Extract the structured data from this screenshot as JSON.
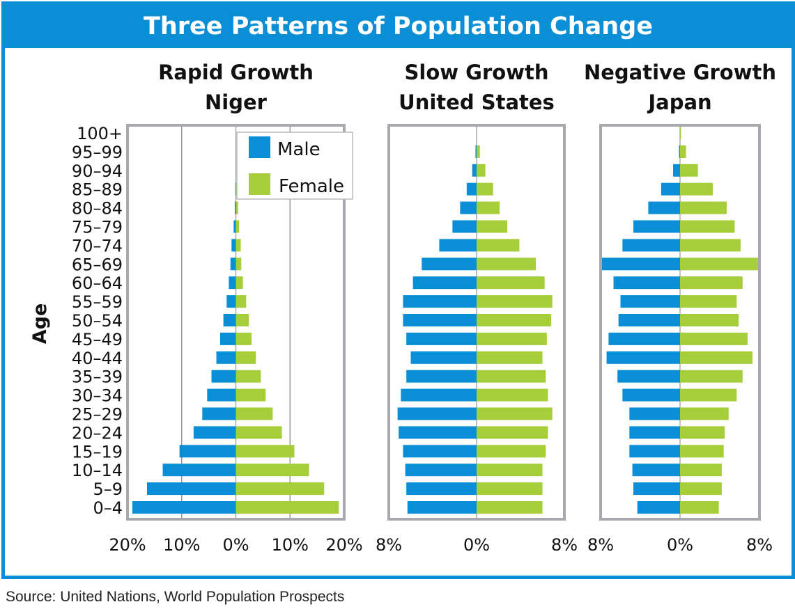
{
  "title": "Three Patterns of Population Change",
  "source": "Source: United Nations, World Population Prospects",
  "colors": {
    "male": "#0a8fd6",
    "female": "#a6cd3a",
    "frame": "#0a8fd6"
  },
  "chart_data": {
    "type": "bar",
    "subtype": "population-pyramid",
    "ylabel": "Age",
    "categories": [
      "100+",
      "95–99",
      "90–94",
      "85–89",
      "80–84",
      "75–79",
      "70–74",
      "65–69",
      "60–64",
      "55–59",
      "50–54",
      "45–49",
      "40–44",
      "35–39",
      "30–34",
      "25–29",
      "20–24",
      "15–19",
      "10–14",
      "5–9",
      "0–4"
    ],
    "legend": {
      "entries": [
        "Male",
        "Female"
      ],
      "placement": "top-right of first panel"
    },
    "panels": [
      {
        "title1": "Rapid Growth",
        "title2": "Niger",
        "xmax": 20,
        "ticks": [
          "20%",
          "10%",
          "0%",
          "10%",
          "20%"
        ],
        "grid": true,
        "series": [
          {
            "name": "Male",
            "values": [
              0,
              0,
              0,
              0.1,
              0.2,
              0.4,
              0.8,
              1.0,
              1.3,
              1.7,
              2.3,
              2.9,
              3.6,
              4.5,
              5.3,
              6.2,
              7.8,
              10.4,
              13.5,
              16.4,
              19.1
            ]
          },
          {
            "name": "Female",
            "values": [
              0,
              0,
              0,
              0.2,
              0.4,
              0.6,
              0.9,
              1.0,
              1.3,
              1.9,
              2.4,
              2.9,
              3.7,
              4.6,
              5.5,
              6.8,
              8.5,
              10.8,
              13.5,
              16.3,
              19.0
            ]
          }
        ]
      },
      {
        "title1": "Slow Growth",
        "title2": "United States",
        "xmax": 8,
        "ticks": [
          "8%",
          "0%",
          "8%"
        ],
        "grid": false,
        "series": [
          {
            "name": "Male",
            "values": [
              0,
              0.1,
              0.4,
              0.9,
              1.5,
              2.2,
              3.4,
              5.0,
              5.8,
              6.7,
              6.7,
              6.4,
              6.0,
              6.4,
              6.9,
              7.2,
              7.1,
              6.7,
              6.5,
              6.4,
              6.3
            ]
          },
          {
            "name": "Female",
            "values": [
              0,
              0.3,
              0.8,
              1.5,
              2.1,
              2.8,
              3.9,
              5.4,
              6.2,
              6.9,
              6.8,
              6.4,
              6.0,
              6.3,
              6.5,
              6.9,
              6.5,
              6.3,
              6.0,
              6.0,
              6.0
            ]
          }
        ]
      },
      {
        "title1": "Negative Growth",
        "title2": "Japan",
        "xmax": 8,
        "ticks": [
          "8%",
          "0%",
          "8%"
        ],
        "grid": false,
        "series": [
          {
            "name": "Male",
            "values": [
              0,
              0.1,
              0.7,
              1.9,
              3.2,
              4.7,
              5.8,
              8.0,
              6.7,
              6.0,
              6.2,
              7.2,
              7.4,
              6.3,
              5.8,
              5.1,
              5.1,
              5.1,
              4.8,
              4.7,
              4.3
            ]
          },
          {
            "name": "Female",
            "values": [
              0.1,
              0.6,
              1.8,
              3.3,
              4.7,
              5.5,
              6.1,
              7.9,
              6.3,
              5.7,
              5.9,
              6.8,
              7.3,
              6.3,
              5.7,
              4.9,
              4.5,
              4.4,
              4.2,
              4.2,
              3.9
            ]
          }
        ]
      }
    ]
  }
}
